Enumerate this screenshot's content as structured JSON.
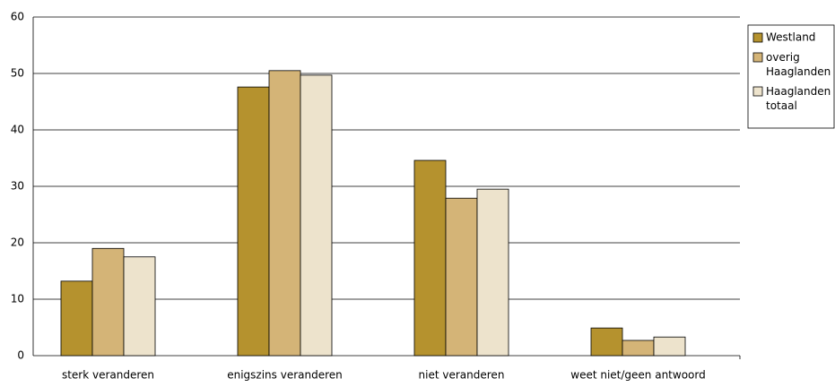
{
  "chart_data": {
    "type": "bar",
    "categories": [
      "sterk veranderen",
      "enigszins veranderen",
      "niet veranderen",
      "weet niet/geen antwoord"
    ],
    "series": [
      {
        "name": "Westland",
        "color": "#b5922e",
        "values": [
          13.2,
          47.6,
          34.6,
          4.9
        ]
      },
      {
        "name": "overig Haaglanden",
        "color": "#d4b477",
        "values": [
          19.0,
          50.5,
          27.9,
          2.7
        ]
      },
      {
        "name": "Haaglanden totaal",
        "color": "#ede3cc",
        "values": [
          17.5,
          49.7,
          29.5,
          3.3
        ]
      }
    ],
    "ylim": [
      0,
      60
    ],
    "yticks": [
      0,
      10,
      20,
      30,
      40,
      50,
      60
    ],
    "grid": true,
    "legend": "right"
  }
}
